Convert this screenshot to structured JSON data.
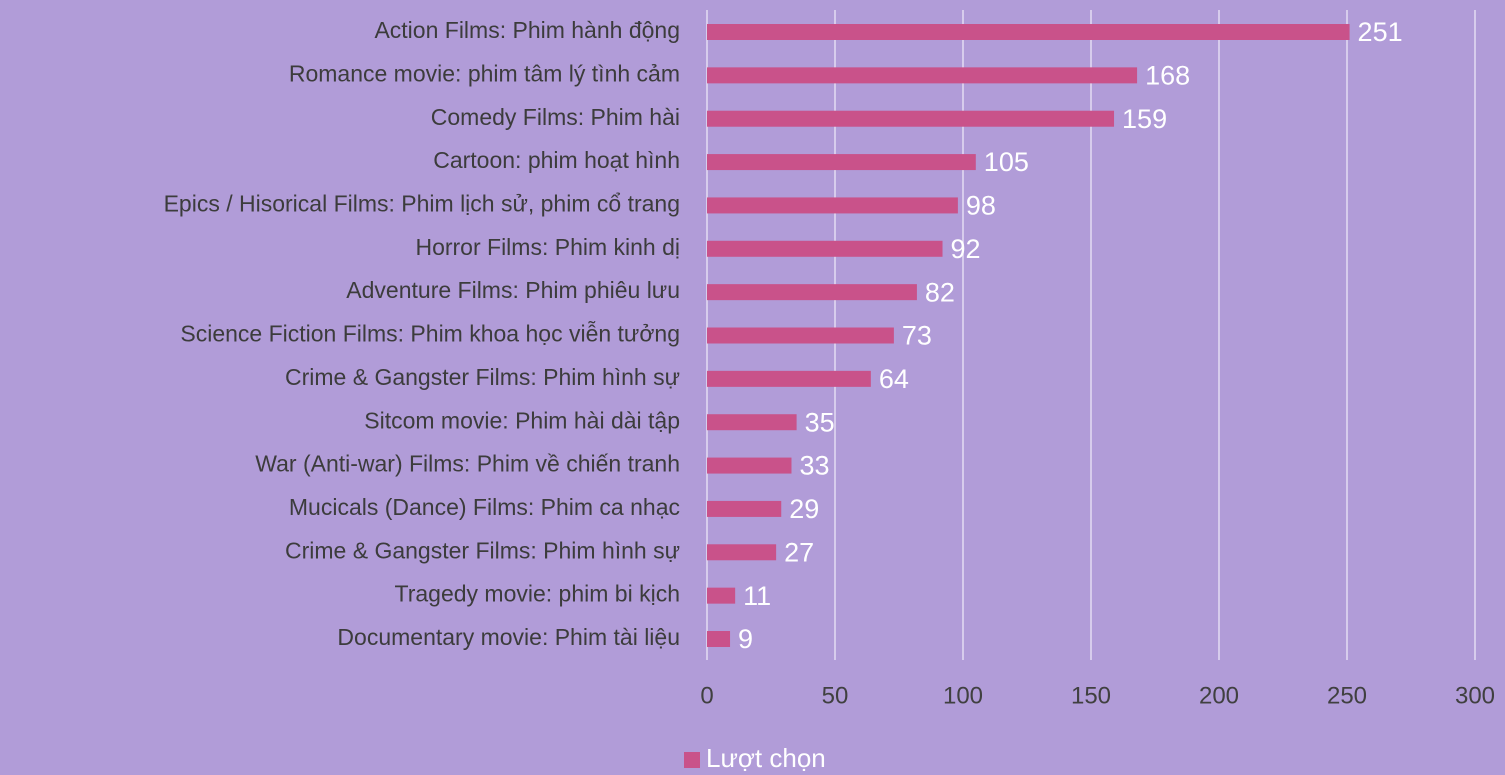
{
  "chart_data": {
    "type": "bar",
    "orientation": "horizontal",
    "categories": [
      "Action Films: Phim hành động",
      "Romance movie: phim tâm lý tình cảm",
      "Comedy Films: Phim hài",
      "Cartoon: phim hoạt hình",
      "Epics / Hisorical Films: Phim lịch sử, phim cổ trang",
      "Horror Films: Phim kinh dị",
      "Adventure Films: Phim phiêu lưu",
      "Science Fiction Films: Phim khoa học viễn tưởng",
      "Crime & Gangster Films: Phim hình sự",
      "Sitcom movie: Phim hài dài tập",
      "War (Anti-war) Films: Phim về chiến tranh",
      "Mucicals (Dance) Films: Phim ca nhạc",
      "Crime & Gangster Films: Phim hình sự",
      "Tragedy movie: phim bi kịch",
      "Documentary movie: Phim tài liệu"
    ],
    "series": [
      {
        "name": "Lượt chọn",
        "color": "#c9528a",
        "values": [
          251,
          168,
          159,
          105,
          98,
          92,
          82,
          73,
          64,
          35,
          33,
          29,
          27,
          11,
          9
        ]
      }
    ],
    "xlim": [
      0,
      300
    ],
    "xticks": [
      0,
      50,
      100,
      150,
      200,
      250,
      300
    ],
    "grid": true,
    "legend": "bottom"
  }
}
